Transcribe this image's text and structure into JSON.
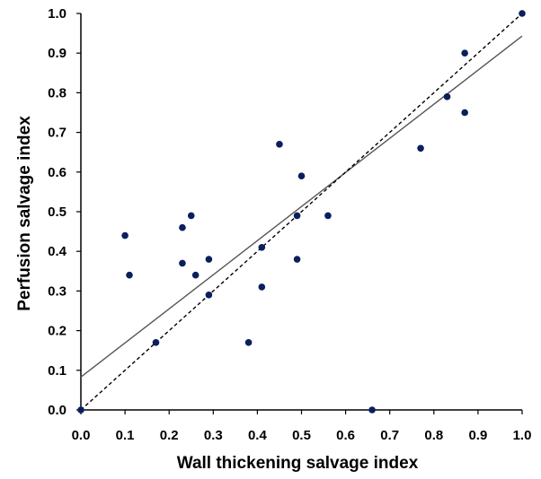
{
  "chart_data": {
    "type": "scatter",
    "title": "",
    "xlabel": "Wall thickening salvage index",
    "ylabel": "Perfusion salvage index",
    "xlim": [
      0.0,
      1.0
    ],
    "ylim": [
      0.0,
      1.0
    ],
    "x_ticks": [
      "0.0",
      "0.1",
      "0.2",
      "0.3",
      "0.4",
      "0.5",
      "0.6",
      "0.7",
      "0.8",
      "0.9",
      "1.0"
    ],
    "y_ticks": [
      "0.0",
      "0.1",
      "0.2",
      "0.3",
      "0.4",
      "0.5",
      "0.6",
      "0.7",
      "0.8",
      "0.9",
      "1.0"
    ],
    "grid": false,
    "legend": "none",
    "points": [
      {
        "x": 0.0,
        "y": 0.0
      },
      {
        "x": 0.1,
        "y": 0.44
      },
      {
        "x": 0.11,
        "y": 0.34
      },
      {
        "x": 0.17,
        "y": 0.17
      },
      {
        "x": 0.23,
        "y": 0.46
      },
      {
        "x": 0.23,
        "y": 0.37
      },
      {
        "x": 0.25,
        "y": 0.49
      },
      {
        "x": 0.26,
        "y": 0.34
      },
      {
        "x": 0.29,
        "y": 0.38
      },
      {
        "x": 0.29,
        "y": 0.29
      },
      {
        "x": 0.38,
        "y": 0.17
      },
      {
        "x": 0.41,
        "y": 0.41
      },
      {
        "x": 0.41,
        "y": 0.31
      },
      {
        "x": 0.45,
        "y": 0.67
      },
      {
        "x": 0.49,
        "y": 0.49
      },
      {
        "x": 0.49,
        "y": 0.38
      },
      {
        "x": 0.5,
        "y": 0.59
      },
      {
        "x": 0.56,
        "y": 0.49
      },
      {
        "x": 0.66,
        "y": 0.0
      },
      {
        "x": 0.77,
        "y": 0.66
      },
      {
        "x": 0.83,
        "y": 0.79
      },
      {
        "x": 0.87,
        "y": 0.9
      },
      {
        "x": 0.87,
        "y": 0.75
      },
      {
        "x": 1.0,
        "y": 1.0
      }
    ],
    "regression_line": {
      "intercept": 0.083,
      "slope": 0.86,
      "style": "solid",
      "color": "#555555"
    },
    "identity_line": {
      "intercept": 0.0,
      "slope": 1.0,
      "style": "dashed",
      "color": "#000000"
    },
    "marker_color": "#0a1f5c"
  }
}
